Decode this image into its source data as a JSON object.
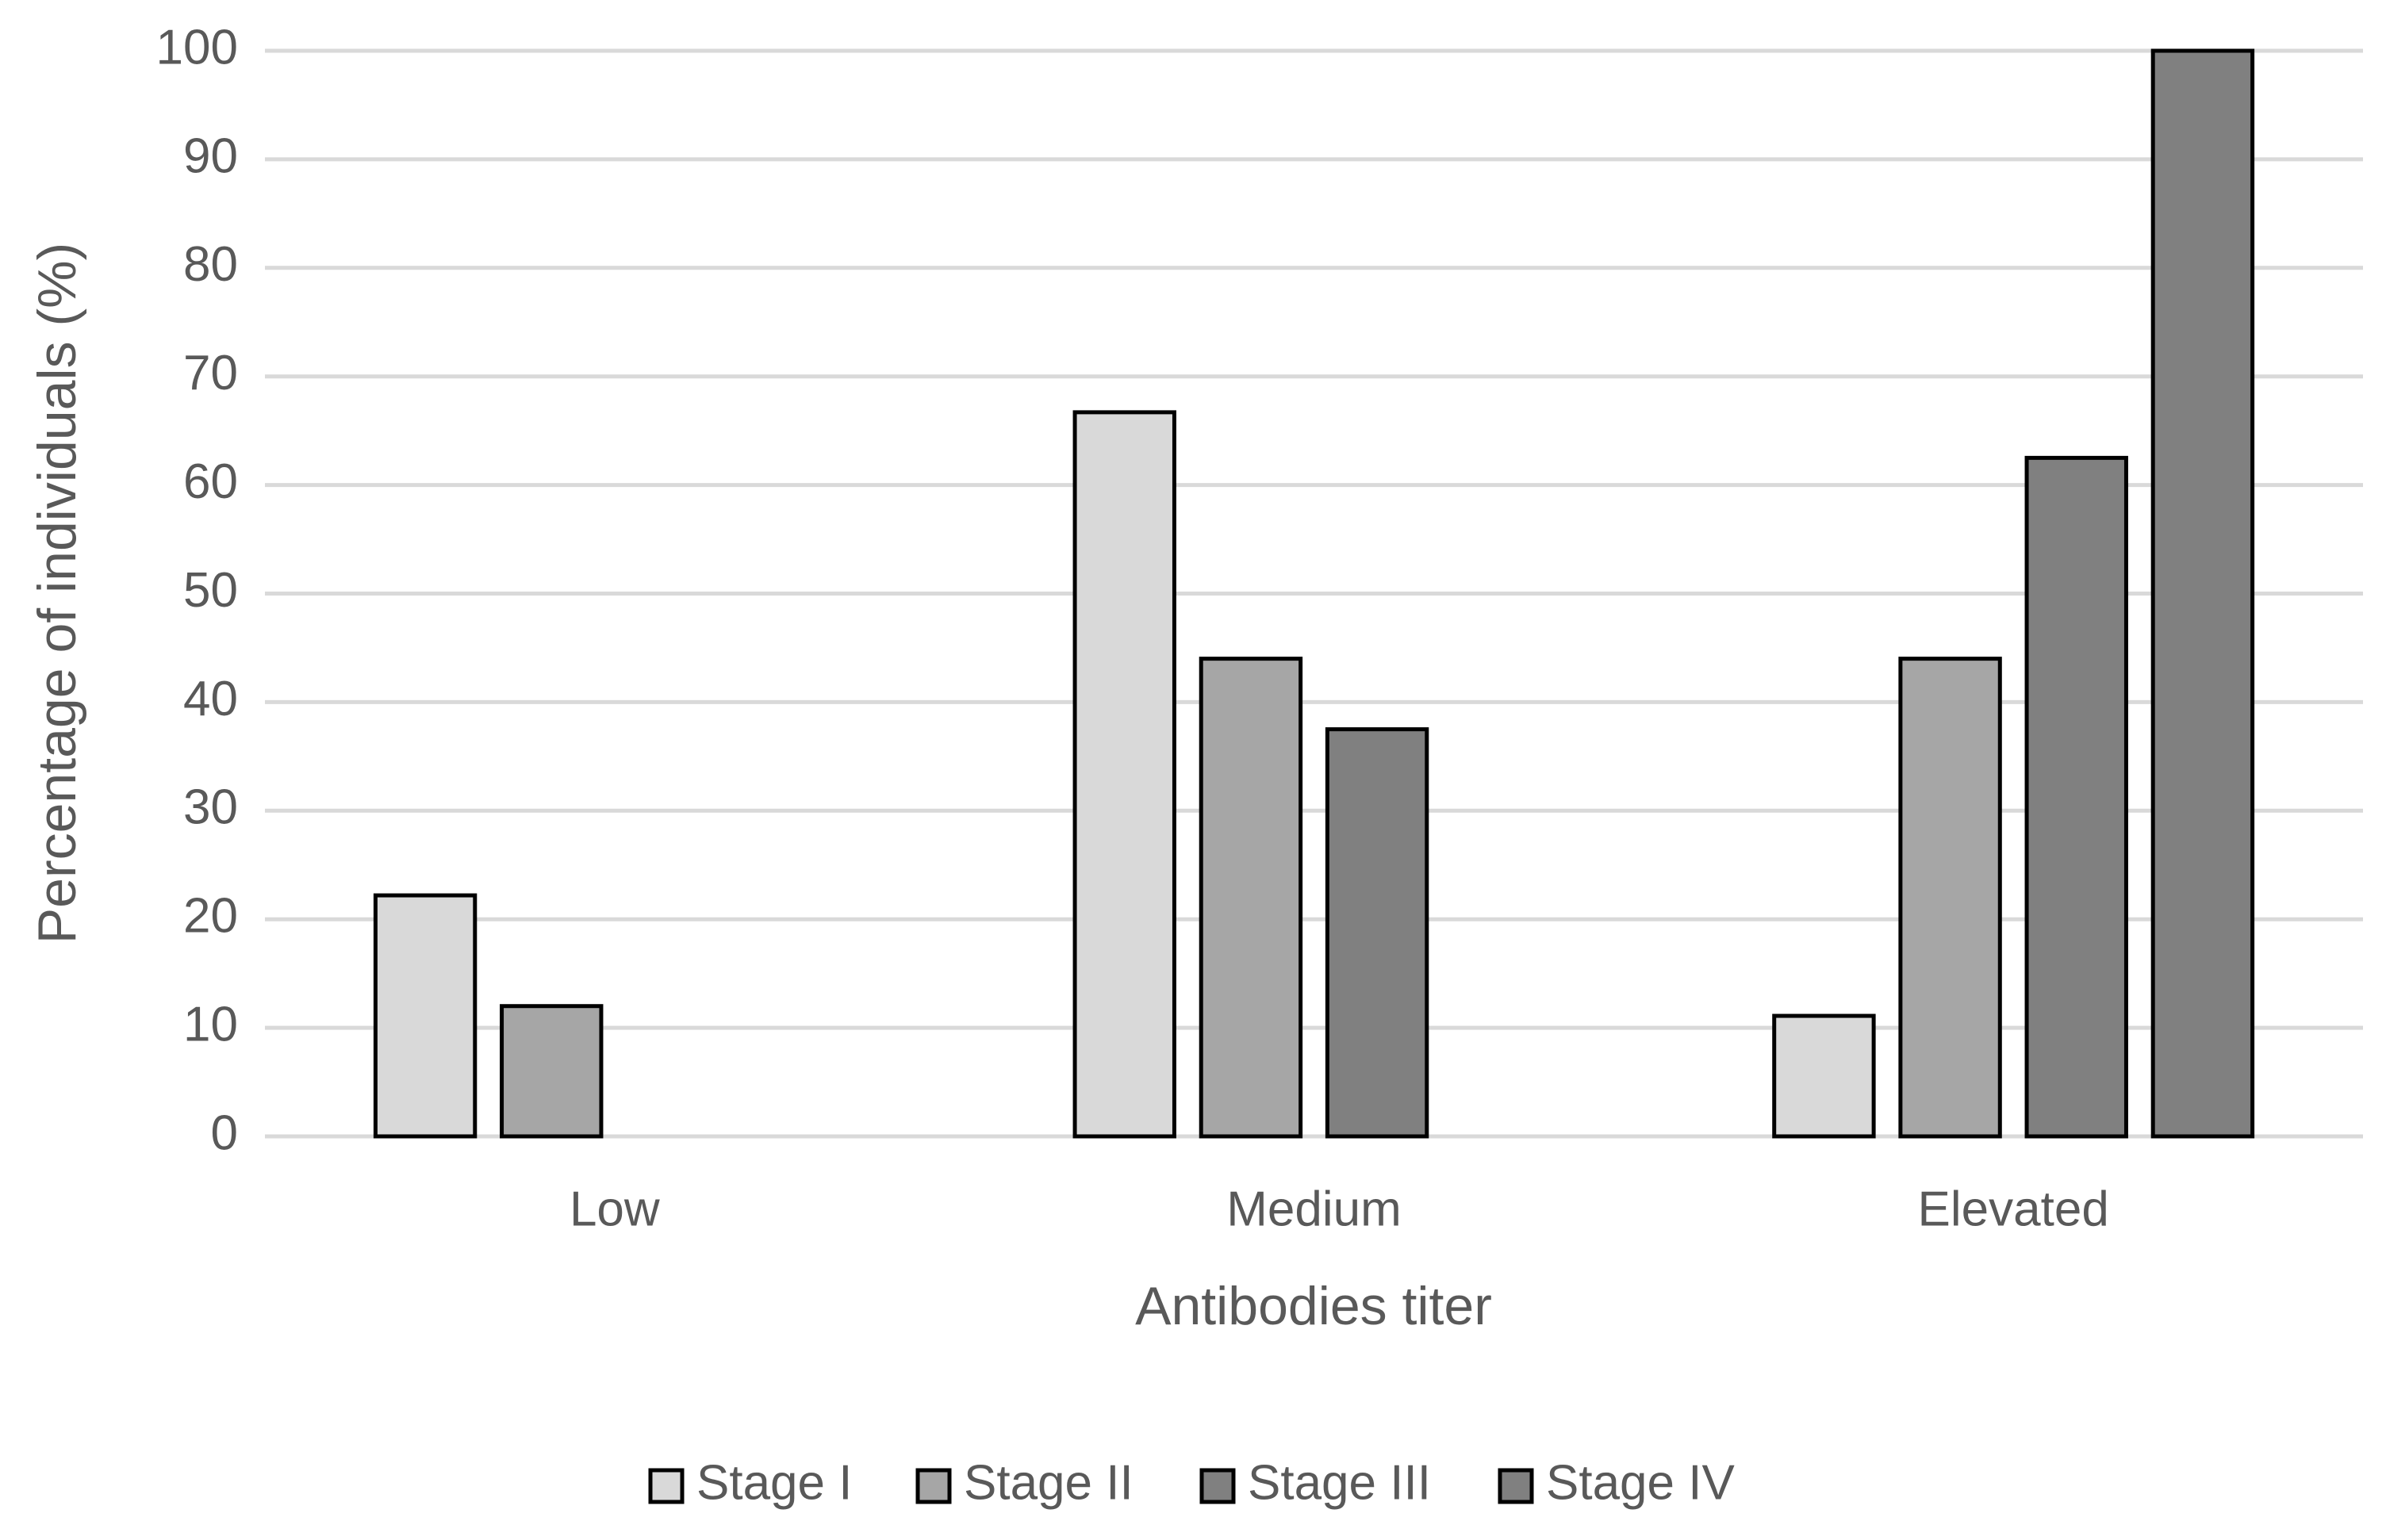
{
  "chart_data": {
    "type": "bar",
    "x_label": "Antibodies titer",
    "y_label": "Percentage of individuals (%)",
    "categories": [
      "Low",
      "Medium",
      "Elevated"
    ],
    "series": [
      {
        "name": "Stage I",
        "color": "#d9d9d9",
        "values": [
          22.2,
          66.7,
          11.1
        ]
      },
      {
        "name": "Stage II",
        "color": "#a6a6a6",
        "values": [
          12,
          44,
          44
        ]
      },
      {
        "name": "Stage III",
        "color": "#808080",
        "values": [
          0,
          37.5,
          62.5
        ]
      },
      {
        "name": "Stage IV",
        "color": "#808080",
        "values": [
          0,
          0,
          100
        ]
      }
    ],
    "ylim": [
      0,
      100
    ],
    "yticks": [
      0,
      10,
      20,
      30,
      40,
      50,
      60,
      70,
      80,
      90,
      100
    ],
    "grid": true,
    "legend": "bottom"
  }
}
